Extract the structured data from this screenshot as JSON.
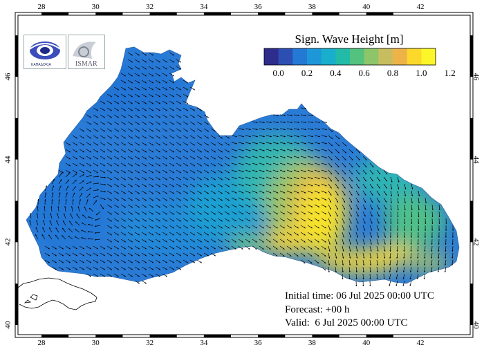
{
  "map": {
    "title": "Sign. Wave Height [m]",
    "colorbar": {
      "ticks": [
        "0.0",
        "0.2",
        "0.4",
        "0.6",
        "0.8",
        "1.0",
        "1.2"
      ],
      "colors": [
        "#2e2c8c",
        "#2d4fb4",
        "#2479d4",
        "#1e97d8",
        "#19aecb",
        "#22bba7",
        "#53c27e",
        "#8dc56a",
        "#c7bd5f",
        "#eeb348",
        "#fbd82a",
        "#fbf52a"
      ]
    },
    "lon_ticks": [
      "28",
      "30",
      "32",
      "34",
      "36",
      "38",
      "40",
      "42"
    ],
    "lat_ticks": [
      "40",
      "42",
      "44",
      "46"
    ],
    "info": {
      "initial_time": "Initial time: 06 Jul 2025 00:00 UTC",
      "forecast": "Forecast: +00 h",
      "valid": "Valid:  6 Jul 2025 00:00 UTC"
    },
    "logos": {
      "left_text": "ΚΑΠΑΔΟΚΙΑ",
      "right_text": "ΙSMAR"
    },
    "colors": {
      "sea_base": "#2a7bd6",
      "land": "#ffffff",
      "arrow": "#000000"
    }
  }
}
